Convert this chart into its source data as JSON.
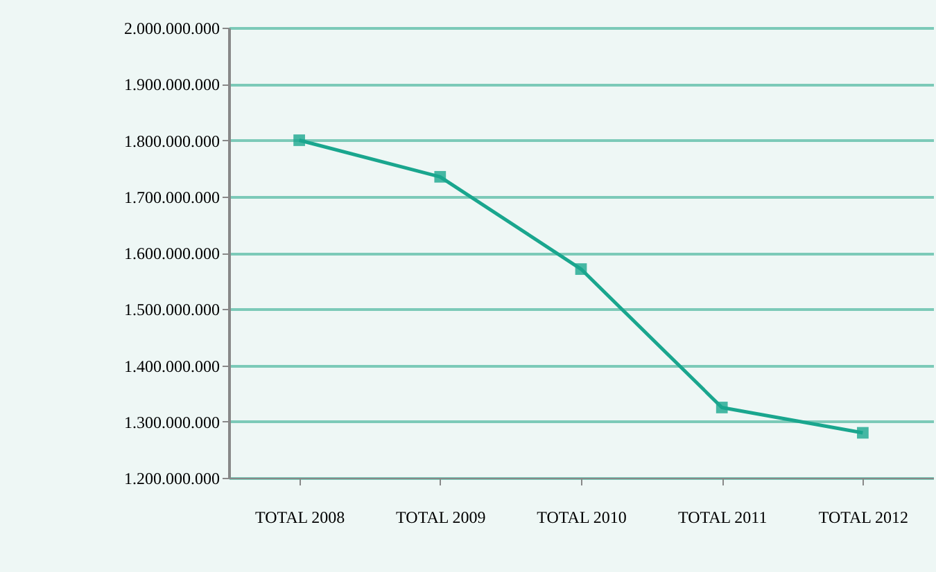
{
  "chart_data": {
    "type": "line",
    "categories": [
      "TOTAL 2008",
      "TOTAL 2009",
      "TOTAL 2010",
      "TOTAL 2011",
      "TOTAL 2012"
    ],
    "series": [
      {
        "color": "#1aa68e",
        "values": [
          1800000000,
          1735000000,
          1571000000,
          1325000000,
          1280000000
        ]
      }
    ],
    "ylim": [
      1200000000,
      2000000000
    ],
    "yticks": [
      {
        "value": 1200000000,
        "label": "1.200.000.000"
      },
      {
        "value": 1300000000,
        "label": "1.300.000.000"
      },
      {
        "value": 1400000000,
        "label": "1.400.000.000"
      },
      {
        "value": 1500000000,
        "label": "1.500.000.000"
      },
      {
        "value": 1600000000,
        "label": "1.600.000.000"
      },
      {
        "value": 1700000000,
        "label": "1.700.000.000"
      },
      {
        "value": 1800000000,
        "label": "1.800.000.000"
      },
      {
        "value": 1900000000,
        "label": "1.900.000.000"
      },
      {
        "value": 2000000000,
        "label": "2.000.000.000"
      }
    ],
    "grid": "y",
    "marker": "square",
    "line_style": "solid"
  }
}
